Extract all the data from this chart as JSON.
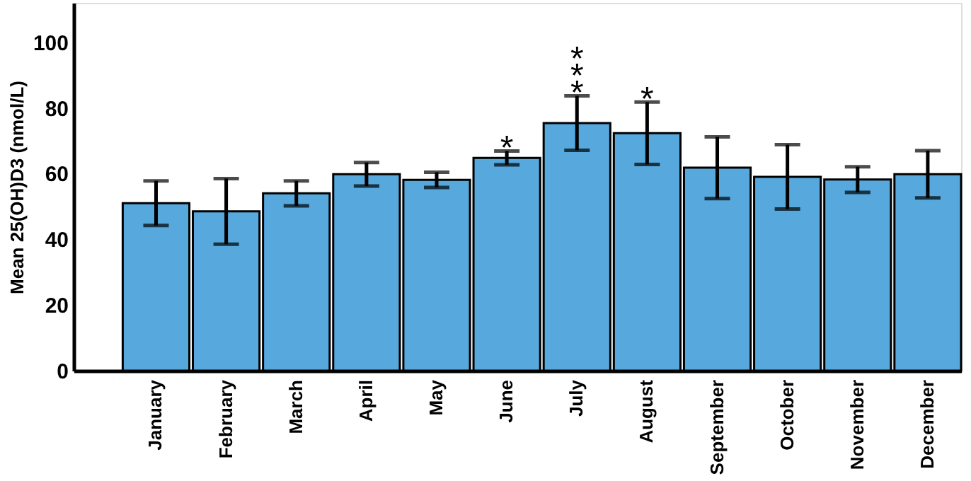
{
  "chart_data": {
    "type": "bar",
    "ylabel": "Mean 25(OH)D3 (nmol/L)",
    "categories": [
      "January",
      "February",
      "March",
      "April",
      "May",
      "June",
      "July",
      "August",
      "September",
      "October",
      "November",
      "December"
    ],
    "values": [
      51.0,
      48.5,
      54.0,
      59.8,
      58.1,
      64.8,
      75.4,
      72.3,
      61.8,
      59.0,
      58.2,
      59.8
    ],
    "errors": [
      6.8,
      10.0,
      3.8,
      3.6,
      2.3,
      2.1,
      8.3,
      9.5,
      9.4,
      9.8,
      3.9,
      7.2
    ],
    "color": "#56a8dd",
    "ylim": [
      0,
      112
    ],
    "yticks": [
      0,
      20,
      40,
      60,
      80,
      100
    ],
    "grid": false,
    "annotations": [
      {
        "text": "*",
        "x": "June",
        "y": 66.9
      },
      {
        "text": "***",
        "x": "July",
        "y": 83.7
      },
      {
        "text": "*",
        "x": "August",
        "y": 81.8
      }
    ]
  }
}
